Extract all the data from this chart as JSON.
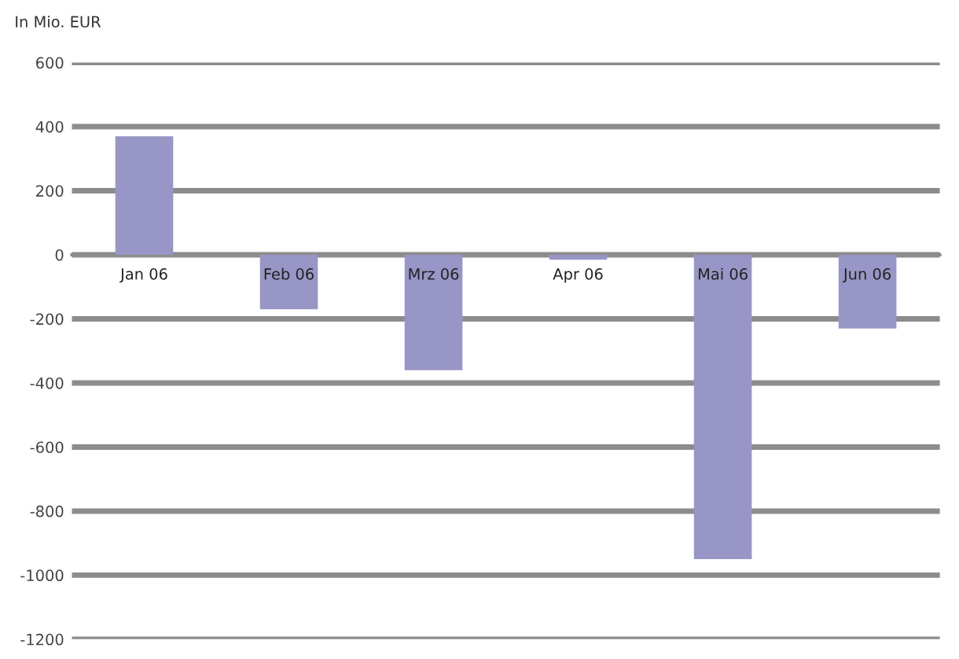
{
  "chart_data": {
    "type": "bar",
    "ylabel": "In Mio. EUR",
    "categories": [
      "Jan 06",
      "Feb 06",
      "Mrz 06",
      "Apr 06",
      "Mai 06",
      "Jun 06"
    ],
    "values": [
      370,
      -170,
      -360,
      -15,
      -950,
      -230
    ],
    "color": "#9896c6",
    "ylim": [
      -1200,
      600
    ],
    "yticks": [
      600,
      400,
      200,
      0,
      -200,
      -400,
      -600,
      -800,
      -1000,
      -1200
    ],
    "grid": "y",
    "legend": false
  }
}
